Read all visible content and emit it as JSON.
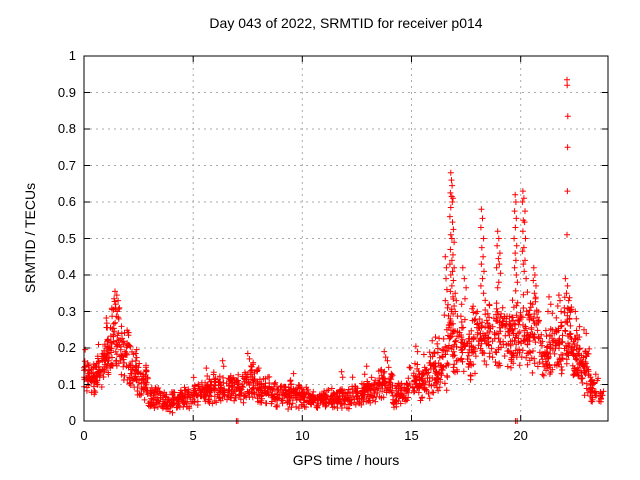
{
  "chart_data": {
    "type": "scatter",
    "title": "Day 043 of 2022, SRMTID for receiver p014",
    "xlabel": "GPS time / hours",
    "ylabel": "SRMTID / TECUs",
    "xlim": [
      0,
      24
    ],
    "ylim": [
      0,
      1
    ],
    "xticks": [
      0,
      5,
      10,
      15,
      20
    ],
    "xtick_labels": [
      "0",
      "5",
      "10",
      "15",
      "20"
    ],
    "yticks": [
      0,
      0.1,
      0.2,
      0.3,
      0.4,
      0.5,
      0.6,
      0.7,
      0.8,
      0.9,
      1
    ],
    "ytick_labels": [
      "0",
      "0.1",
      "0.2",
      "0.3",
      "0.4",
      "0.5",
      "0.6",
      "0.7",
      "0.8",
      "0.9",
      "1"
    ],
    "grid": true,
    "grid_style": "dashed",
    "legend": "none",
    "marker": {
      "shape": "plus",
      "color": "#ff0000",
      "size": 7
    },
    "grid_color": "#aaaaaa",
    "axis_color": "#000000",
    "background": "#ffffff",
    "seed": 20220430,
    "scatter_bins": [
      [
        0.0,
        0.25,
        28,
        0.08,
        0.2
      ],
      [
        0.25,
        0.6,
        35,
        0.06,
        0.18
      ],
      [
        0.6,
        0.95,
        35,
        0.07,
        0.22
      ],
      [
        0.95,
        1.25,
        38,
        0.1,
        0.29
      ],
      [
        1.25,
        1.65,
        42,
        0.12,
        0.33
      ],
      [
        1.65,
        2.05,
        40,
        0.1,
        0.28
      ],
      [
        2.05,
        2.45,
        40,
        0.08,
        0.22
      ],
      [
        2.45,
        2.95,
        45,
        0.05,
        0.16
      ],
      [
        2.95,
        3.55,
        50,
        0.03,
        0.1
      ],
      [
        3.55,
        4.35,
        60,
        0.02,
        0.085
      ],
      [
        4.35,
        5.0,
        52,
        0.03,
        0.1
      ],
      [
        5.0,
        5.55,
        48,
        0.04,
        0.125
      ],
      [
        5.55,
        6.15,
        50,
        0.04,
        0.14
      ],
      [
        6.15,
        6.75,
        50,
        0.04,
        0.135
      ],
      [
        6.75,
        7.35,
        50,
        0.04,
        0.135
      ],
      [
        7.35,
        7.95,
        50,
        0.05,
        0.16
      ],
      [
        7.95,
        8.55,
        50,
        0.04,
        0.13
      ],
      [
        8.55,
        9.25,
        55,
        0.03,
        0.11
      ],
      [
        9.25,
        9.95,
        55,
        0.03,
        0.115
      ],
      [
        9.95,
        10.55,
        50,
        0.03,
        0.095
      ],
      [
        10.55,
        11.35,
        62,
        0.025,
        0.09
      ],
      [
        11.35,
        12.15,
        62,
        0.025,
        0.1
      ],
      [
        12.15,
        12.85,
        55,
        0.03,
        0.11
      ],
      [
        12.85,
        13.45,
        50,
        0.04,
        0.13
      ],
      [
        13.45,
        14.15,
        55,
        0.05,
        0.16
      ],
      [
        14.15,
        14.85,
        55,
        0.03,
        0.11
      ],
      [
        14.85,
        15.55,
        55,
        0.05,
        0.17
      ],
      [
        15.55,
        16.15,
        52,
        0.06,
        0.2
      ],
      [
        16.15,
        16.65,
        45,
        0.05,
        0.26
      ],
      [
        16.65,
        17.15,
        48,
        0.1,
        0.34
      ],
      [
        17.15,
        17.75,
        50,
        0.1,
        0.31
      ],
      [
        17.75,
        18.35,
        50,
        0.12,
        0.33
      ],
      [
        18.35,
        18.95,
        50,
        0.13,
        0.35
      ],
      [
        18.95,
        19.55,
        50,
        0.12,
        0.33
      ],
      [
        19.55,
        19.95,
        42,
        0.12,
        0.36
      ],
      [
        19.95,
        20.35,
        40,
        0.12,
        0.36
      ],
      [
        20.35,
        20.85,
        45,
        0.12,
        0.36
      ],
      [
        20.85,
        21.45,
        52,
        0.1,
        0.27
      ],
      [
        21.45,
        21.95,
        46,
        0.12,
        0.31
      ],
      [
        21.95,
        22.35,
        40,
        0.12,
        0.36
      ],
      [
        22.35,
        22.75,
        45,
        0.1,
        0.27
      ],
      [
        22.75,
        23.15,
        42,
        0.06,
        0.21
      ],
      [
        23.15,
        23.55,
        30,
        0.04,
        0.13
      ],
      [
        23.55,
        23.8,
        12,
        0.04,
        0.1
      ]
    ],
    "spike_points": [
      [
        1.42,
        0.355
      ],
      [
        1.5,
        0.345
      ],
      [
        1.38,
        0.335
      ],
      [
        1.56,
        0.33
      ],
      [
        1.45,
        0.32
      ],
      [
        1.62,
        0.31
      ],
      [
        1.35,
        0.305
      ],
      [
        1.52,
        0.3
      ],
      [
        5.6,
        0.145
      ],
      [
        6.35,
        0.165
      ],
      [
        6.4,
        0.15
      ],
      [
        7.5,
        0.185
      ],
      [
        7.58,
        0.17
      ],
      [
        7.75,
        0.16
      ],
      [
        8.0,
        0.145
      ],
      [
        9.6,
        0.13
      ],
      [
        11.8,
        0.135
      ],
      [
        11.85,
        0.12
      ],
      [
        12.3,
        0.12
      ],
      [
        12.95,
        0.15
      ],
      [
        13.75,
        0.19
      ],
      [
        13.82,
        0.175
      ],
      [
        13.9,
        0.165
      ],
      [
        15.2,
        0.205
      ],
      [
        15.28,
        0.19
      ],
      [
        15.95,
        0.22
      ],
      [
        16.1,
        0.23
      ],
      [
        16.55,
        0.45
      ],
      [
        16.6,
        0.42
      ],
      [
        16.58,
        0.39
      ],
      [
        16.62,
        0.36
      ],
      [
        16.55,
        0.33
      ],
      [
        16.65,
        0.31
      ],
      [
        16.5,
        0.29
      ],
      [
        16.8,
        0.68
      ],
      [
        16.83,
        0.66
      ],
      [
        16.86,
        0.645
      ],
      [
        16.78,
        0.625
      ],
      [
        16.84,
        0.615
      ],
      [
        16.9,
        0.61
      ],
      [
        16.87,
        0.6
      ],
      [
        16.8,
        0.585
      ],
      [
        16.76,
        0.56
      ],
      [
        16.88,
        0.545
      ],
      [
        16.92,
        0.525
      ],
      [
        16.8,
        0.51
      ],
      [
        16.85,
        0.5
      ],
      [
        16.95,
        0.49
      ],
      [
        16.78,
        0.47
      ],
      [
        16.9,
        0.455
      ],
      [
        16.85,
        0.44
      ],
      [
        16.76,
        0.43
      ],
      [
        16.95,
        0.42
      ],
      [
        16.88,
        0.41
      ],
      [
        16.8,
        0.4
      ],
      [
        16.92,
        0.385
      ],
      [
        16.85,
        0.37
      ],
      [
        16.78,
        0.355
      ],
      [
        17.0,
        0.35
      ],
      [
        16.9,
        0.34
      ],
      [
        17.05,
        0.33
      ],
      [
        16.95,
        0.315
      ],
      [
        17.0,
        0.3
      ],
      [
        17.35,
        0.42
      ],
      [
        17.42,
        0.39
      ],
      [
        17.5,
        0.365
      ],
      [
        17.45,
        0.335
      ],
      [
        17.3,
        0.32
      ],
      [
        18.2,
        0.58
      ],
      [
        18.25,
        0.555
      ],
      [
        18.18,
        0.53
      ],
      [
        18.3,
        0.5
      ],
      [
        18.22,
        0.475
      ],
      [
        18.28,
        0.45
      ],
      [
        18.2,
        0.43
      ],
      [
        18.32,
        0.41
      ],
      [
        18.25,
        0.39
      ],
      [
        18.18,
        0.37
      ],
      [
        18.3,
        0.35
      ],
      [
        18.95,
        0.52
      ],
      [
        19.0,
        0.5
      ],
      [
        18.92,
        0.48
      ],
      [
        19.05,
        0.46
      ],
      [
        18.98,
        0.445
      ],
      [
        19.02,
        0.43
      ],
      [
        18.9,
        0.42
      ],
      [
        19.08,
        0.405
      ],
      [
        19.0,
        0.38
      ],
      [
        18.95,
        0.365
      ],
      [
        19.75,
        0.62
      ],
      [
        19.78,
        0.6
      ],
      [
        19.72,
        0.575
      ],
      [
        19.8,
        0.555
      ],
      [
        19.76,
        0.53
      ],
      [
        19.7,
        0.5
      ],
      [
        19.82,
        0.48
      ],
      [
        19.75,
        0.46
      ],
      [
        19.78,
        0.44
      ],
      [
        19.72,
        0.42
      ],
      [
        19.8,
        0.4
      ],
      [
        19.85,
        0.38
      ],
      [
        20.1,
        0.63
      ],
      [
        20.15,
        0.61
      ],
      [
        20.08,
        0.6
      ],
      [
        20.2,
        0.575
      ],
      [
        20.12,
        0.55
      ],
      [
        20.18,
        0.545
      ],
      [
        20.1,
        0.52
      ],
      [
        20.22,
        0.5
      ],
      [
        20.15,
        0.475
      ],
      [
        20.08,
        0.465
      ],
      [
        20.2,
        0.44
      ],
      [
        20.12,
        0.43
      ],
      [
        20.16,
        0.41
      ],
      [
        20.25,
        0.39
      ],
      [
        20.6,
        0.42
      ],
      [
        20.65,
        0.4
      ],
      [
        20.58,
        0.385
      ],
      [
        20.7,
        0.37
      ],
      [
        20.63,
        0.35
      ],
      [
        20.68,
        0.335
      ],
      [
        20.55,
        0.32
      ],
      [
        21.3,
        0.34
      ],
      [
        21.38,
        0.32
      ],
      [
        21.25,
        0.3
      ],
      [
        21.45,
        0.295
      ],
      [
        21.75,
        0.345
      ],
      [
        21.8,
        0.33
      ],
      [
        21.7,
        0.315
      ],
      [
        21.85,
        0.3
      ],
      [
        22.12,
        0.935
      ],
      [
        22.13,
        0.92
      ],
      [
        22.16,
        0.835
      ],
      [
        22.15,
        0.75
      ],
      [
        22.14,
        0.63
      ],
      [
        22.12,
        0.51
      ],
      [
        22.15,
        0.37
      ],
      [
        22.05,
        0.39
      ],
      [
        22.1,
        0.35
      ],
      [
        22.2,
        0.33
      ],
      [
        22.0,
        0.31
      ],
      [
        22.5,
        0.3
      ],
      [
        22.55,
        0.28
      ],
      [
        22.9,
        0.25
      ],
      [
        23.0,
        0.24
      ]
    ],
    "zero_points": [
      [
        6.98,
        0
      ],
      [
        7.05,
        0
      ],
      [
        19.77,
        0
      ],
      [
        19.84,
        0
      ]
    ]
  }
}
